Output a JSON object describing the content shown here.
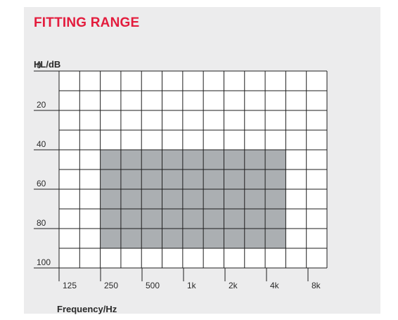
{
  "chart_data": {
    "type": "area",
    "title": "FITTING RANGE",
    "ylabel": "HL/dB",
    "xlabel": "Frequency/Hz",
    "x_tick_labels": [
      "125",
      "250",
      "500",
      "1k",
      "2k",
      "4k",
      "8k"
    ],
    "y_tick_labels": [
      "0",
      "20",
      "40",
      "60",
      "80",
      "100"
    ],
    "y_ticks": [
      0,
      20,
      40,
      60,
      80,
      100
    ],
    "ylim": [
      0,
      100
    ],
    "y_inverted": true,
    "grid": true,
    "fitting_range": {
      "from_freq": "250",
      "to_freq": "6k",
      "hl_top": 40,
      "hl_bottom": 90
    },
    "colors": {
      "title": "#e31c3d",
      "fill": "#abafb2",
      "grid": "#1e1e1e",
      "plot_bg": "#ffffff",
      "panel_bg": "#ececed"
    }
  }
}
